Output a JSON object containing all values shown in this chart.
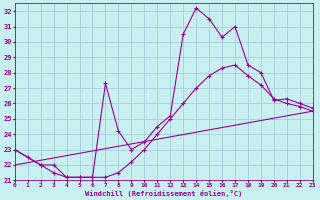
{
  "xlabel": "Windchill (Refroidissement éolien,°C)",
  "bg_color": "#c8f0f0",
  "grid_color": "#a0c8d8",
  "line_color": "#990099",
  "ylim": [
    21,
    32.5
  ],
  "xlim": [
    0,
    23
  ],
  "yticks": [
    21,
    22,
    23,
    24,
    25,
    26,
    27,
    28,
    29,
    30,
    31,
    32
  ],
  "xticks": [
    0,
    1,
    2,
    3,
    4,
    5,
    6,
    7,
    8,
    9,
    10,
    11,
    12,
    13,
    14,
    15,
    16,
    17,
    18,
    19,
    20,
    21,
    22,
    23
  ],
  "curve1_x": [
    0,
    1,
    2,
    3,
    4,
    5,
    6,
    7,
    8,
    9,
    10,
    11,
    12,
    13,
    14,
    15,
    16,
    17,
    18,
    19,
    20,
    21,
    22,
    23
  ],
  "curve1_y": [
    23.0,
    22.5,
    22.0,
    22.0,
    21.2,
    21.2,
    21.2,
    21.2,
    21.5,
    22.2,
    23.0,
    24.0,
    25.0,
    26.0,
    27.0,
    27.8,
    28.3,
    28.5,
    27.8,
    27.2,
    26.3,
    26.0,
    25.8,
    25.5
  ],
  "curve2_x": [
    0,
    2,
    3,
    4,
    5,
    6,
    7,
    8,
    9,
    10,
    11,
    12,
    13,
    14,
    15,
    16,
    17,
    18,
    19,
    20,
    21,
    22,
    23
  ],
  "curve2_y": [
    23.0,
    22.0,
    21.5,
    21.2,
    21.2,
    21.2,
    27.3,
    24.2,
    23.0,
    23.5,
    24.5,
    25.2,
    30.5,
    32.2,
    31.5,
    30.3,
    31.0,
    28.5,
    28.0,
    26.2,
    26.3,
    26.0,
    25.7
  ],
  "curve3_x": [
    0,
    23
  ],
  "curve3_y": [
    22.0,
    25.5
  ]
}
